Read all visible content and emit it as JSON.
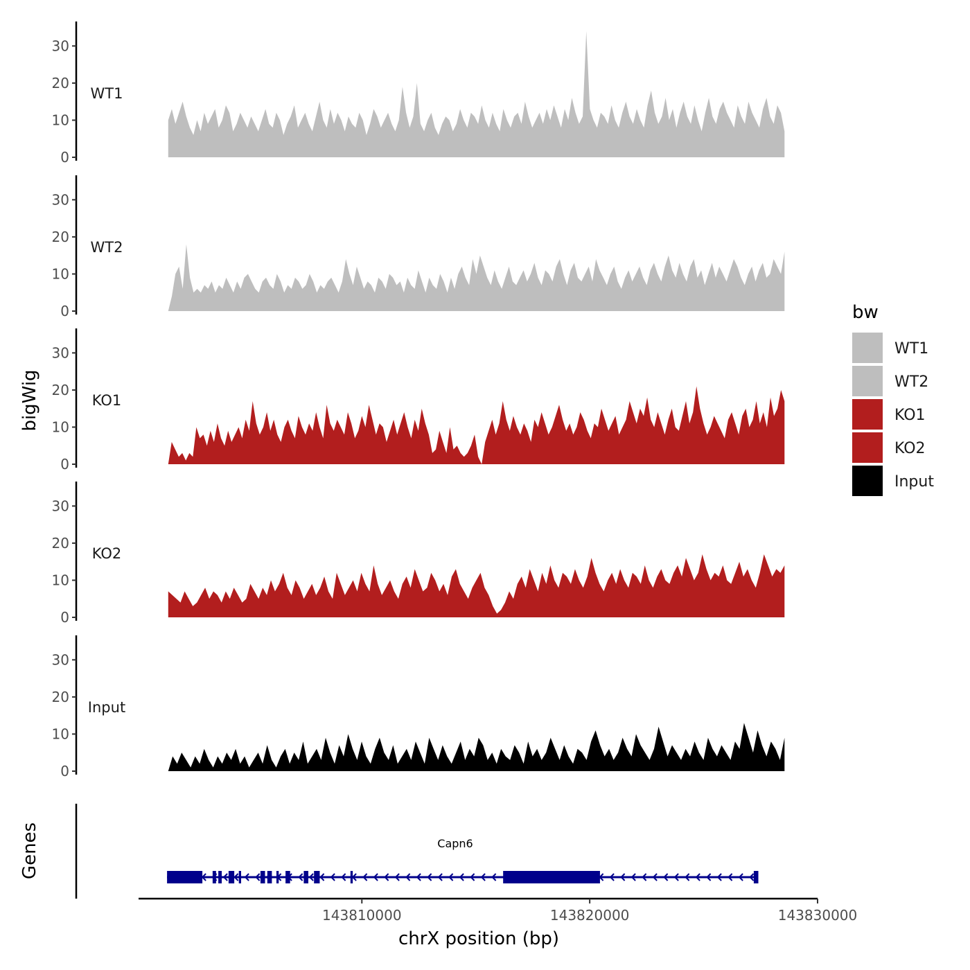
{
  "chart_data": {
    "type": "area",
    "y_axis_title": "bigWig",
    "x_axis_title": "chrX position (bp)",
    "x_range": [
      143800200,
      143830000
    ],
    "x_ticks": [
      143810000,
      143820000,
      143830000
    ],
    "x_tick_labels": [
      "143810000",
      "143820000",
      "143830000"
    ],
    "y_range": [
      0,
      36
    ],
    "y_ticks": [
      0,
      10,
      20,
      30
    ],
    "y_tick_labels": [
      "0",
      "10",
      "20",
      "30"
    ],
    "data_span": [
      143801500,
      143828550
    ],
    "tracks": [
      {
        "name": "WT1",
        "color": "#bebebe",
        "coverage": [
          10,
          13,
          9,
          12,
          15,
          11,
          8,
          6,
          10,
          7,
          12,
          9,
          11,
          13,
          8,
          10,
          14,
          12,
          7,
          9,
          12,
          10,
          8,
          11,
          9,
          7,
          10,
          13,
          9,
          8,
          12,
          10,
          6,
          9,
          11,
          14,
          8,
          10,
          12,
          9,
          7,
          11,
          15,
          10,
          8,
          13,
          9,
          12,
          10,
          7,
          11,
          9,
          8,
          12,
          10,
          6,
          9,
          13,
          11,
          8,
          10,
          12,
          9,
          7,
          10,
          19,
          12,
          8,
          11,
          20,
          9,
          7,
          10,
          12,
          8,
          6,
          9,
          11,
          10,
          7,
          9,
          13,
          10,
          8,
          12,
          11,
          9,
          14,
          10,
          8,
          12,
          9,
          7,
          13,
          10,
          8,
          11,
          12,
          9,
          15,
          11,
          8,
          10,
          12,
          9,
          13,
          10,
          14,
          11,
          8,
          13,
          10,
          16,
          12,
          9,
          11,
          34,
          13,
          10,
          8,
          12,
          11,
          9,
          14,
          10,
          8,
          12,
          15,
          11,
          9,
          13,
          10,
          8,
          14,
          18,
          12,
          9,
          11,
          16,
          10,
          13,
          8,
          12,
          15,
          11,
          9,
          14,
          10,
          7,
          12,
          16,
          11,
          9,
          13,
          15,
          12,
          10,
          8,
          14,
          11,
          9,
          15,
          12,
          10,
          8,
          13,
          16,
          11,
          9,
          14,
          12,
          7
        ]
      },
      {
        "name": "WT2",
        "color": "#bebebe",
        "coverage": [
          0,
          4,
          10,
          12,
          6,
          18,
          9,
          5,
          6,
          5,
          7,
          6,
          8,
          5,
          7,
          6,
          9,
          7,
          5,
          8,
          6,
          9,
          10,
          8,
          6,
          5,
          8,
          9,
          7,
          6,
          10,
          8,
          5,
          7,
          6,
          9,
          8,
          6,
          7,
          10,
          8,
          5,
          7,
          6,
          8,
          9,
          7,
          5,
          8,
          14,
          10,
          7,
          12,
          9,
          6,
          8,
          7,
          5,
          9,
          8,
          6,
          10,
          9,
          7,
          8,
          5,
          9,
          7,
          6,
          11,
          8,
          5,
          9,
          7,
          6,
          10,
          8,
          5,
          9,
          6,
          10,
          12,
          9,
          7,
          14,
          10,
          15,
          12,
          9,
          7,
          11,
          8,
          6,
          9,
          12,
          8,
          7,
          9,
          11,
          8,
          10,
          13,
          9,
          7,
          11,
          10,
          8,
          12,
          14,
          10,
          7,
          11,
          13,
          9,
          8,
          10,
          12,
          8,
          14,
          11,
          9,
          7,
          10,
          12,
          8,
          6,
          9,
          11,
          8,
          10,
          12,
          9,
          7,
          11,
          13,
          10,
          8,
          12,
          15,
          11,
          9,
          13,
          10,
          8,
          12,
          14,
          9,
          11,
          7,
          10,
          13,
          9,
          12,
          10,
          8,
          11,
          14,
          12,
          9,
          7,
          10,
          12,
          8,
          11,
          13,
          9,
          10,
          14,
          12,
          10,
          16
        ]
      },
      {
        "name": "KO1",
        "color": "#b21e1e",
        "coverage": [
          0,
          6,
          4,
          2,
          3,
          1,
          3,
          2,
          10,
          7,
          8,
          5,
          9,
          6,
          11,
          7,
          5,
          9,
          6,
          8,
          10,
          7,
          12,
          9,
          17,
          11,
          8,
          10,
          14,
          9,
          12,
          8,
          6,
          10,
          12,
          9,
          7,
          13,
          10,
          8,
          11,
          9,
          14,
          10,
          7,
          16,
          11,
          9,
          12,
          10,
          8,
          14,
          11,
          7,
          9,
          13,
          10,
          16,
          12,
          8,
          11,
          10,
          6,
          9,
          12,
          8,
          11,
          14,
          10,
          7,
          12,
          9,
          15,
          11,
          8,
          3,
          4,
          9,
          6,
          3,
          10,
          4,
          5,
          3,
          2,
          3,
          5,
          8,
          2,
          0,
          6,
          9,
          12,
          8,
          11,
          17,
          12,
          9,
          13,
          10,
          8,
          11,
          9,
          6,
          12,
          10,
          14,
          11,
          8,
          10,
          13,
          16,
          12,
          9,
          11,
          8,
          10,
          14,
          12,
          9,
          7,
          11,
          10,
          15,
          12,
          9,
          11,
          13,
          8,
          10,
          12,
          17,
          14,
          11,
          15,
          13,
          18,
          12,
          10,
          14,
          11,
          8,
          12,
          15,
          10,
          9,
          13,
          17,
          11,
          14,
          21,
          15,
          11,
          8,
          10,
          13,
          11,
          9,
          7,
          12,
          14,
          11,
          8,
          13,
          15,
          10,
          12,
          17,
          11,
          14,
          10,
          18,
          13,
          15,
          20,
          17
        ]
      },
      {
        "name": "KO2",
        "color": "#b21e1e",
        "coverage": [
          7,
          6,
          5,
          4,
          7,
          5,
          3,
          4,
          6,
          8,
          5,
          7,
          6,
          4,
          7,
          5,
          8,
          6,
          4,
          5,
          9,
          7,
          5,
          8,
          6,
          10,
          7,
          9,
          12,
          8,
          6,
          10,
          8,
          5,
          7,
          9,
          6,
          8,
          11,
          7,
          5,
          12,
          9,
          6,
          8,
          10,
          7,
          12,
          9,
          7,
          14,
          9,
          6,
          8,
          10,
          7,
          5,
          9,
          11,
          8,
          13,
          10,
          7,
          8,
          12,
          10,
          7,
          9,
          6,
          11,
          13,
          9,
          7,
          5,
          8,
          10,
          12,
          8,
          6,
          3,
          1,
          2,
          4,
          7,
          5,
          9,
          11,
          8,
          13,
          10,
          7,
          12,
          9,
          14,
          10,
          8,
          12,
          11,
          9,
          13,
          10,
          8,
          11,
          16,
          12,
          9,
          7,
          10,
          12,
          9,
          13,
          10,
          8,
          12,
          11,
          9,
          14,
          10,
          8,
          11,
          13,
          10,
          9,
          12,
          14,
          11,
          16,
          13,
          10,
          12,
          17,
          13,
          10,
          12,
          11,
          14,
          10,
          9,
          12,
          15,
          11,
          13,
          10,
          8,
          12,
          17,
          14,
          11,
          13,
          12,
          14
        ]
      },
      {
        "name": "Input",
        "color": "#000000",
        "coverage": [
          0,
          4,
          2,
          5,
          3,
          1,
          4,
          2,
          6,
          3,
          1,
          4,
          2,
          5,
          3,
          6,
          2,
          4,
          1,
          3,
          5,
          2,
          7,
          3,
          1,
          4,
          6,
          2,
          5,
          3,
          8,
          2,
          4,
          6,
          3,
          9,
          5,
          2,
          7,
          4,
          10,
          6,
          3,
          8,
          4,
          2,
          6,
          9,
          5,
          3,
          7,
          2,
          4,
          6,
          3,
          8,
          5,
          2,
          9,
          6,
          3,
          7,
          4,
          2,
          5,
          8,
          3,
          6,
          4,
          9,
          7,
          3,
          5,
          2,
          6,
          4,
          3,
          7,
          5,
          2,
          8,
          4,
          6,
          3,
          5,
          9,
          6,
          3,
          7,
          4,
          2,
          6,
          5,
          3,
          8,
          11,
          7,
          4,
          6,
          3,
          5,
          9,
          6,
          4,
          10,
          7,
          5,
          3,
          6,
          12,
          8,
          4,
          7,
          5,
          3,
          6,
          4,
          8,
          5,
          3,
          9,
          6,
          4,
          7,
          5,
          3,
          8,
          6,
          13,
          9,
          5,
          11,
          7,
          4,
          8,
          6,
          3,
          9
        ]
      }
    ],
    "legend": {
      "title": "bw",
      "entries": [
        {
          "label": "WT1",
          "color": "#bebebe"
        },
        {
          "label": "WT2",
          "color": "#bebebe"
        },
        {
          "label": "KO1",
          "color": "#b21e1e"
        },
        {
          "label": "KO2",
          "color": "#b21e1e"
        },
        {
          "label": "Input",
          "color": "#000000"
        }
      ]
    },
    "genes_track": {
      "title": "Genes",
      "color": "#00008b",
      "gene_name": "Capn6",
      "strand": "-",
      "span": [
        143801450,
        143827400
      ],
      "exons": [
        [
          143801450,
          143803000
        ],
        [
          143803450,
          143803600
        ],
        [
          143803700,
          143803850
        ],
        [
          143804150,
          143804400
        ],
        [
          143804600,
          143804700
        ],
        [
          143805550,
          143805750
        ],
        [
          143805850,
          143806050
        ],
        [
          143806250,
          143806350
        ],
        [
          143806650,
          143806850
        ],
        [
          143807450,
          143807650
        ],
        [
          143807900,
          143808150
        ],
        [
          143809500,
          143809600
        ],
        [
          143816200,
          143820450
        ],
        [
          143827200,
          143827400
        ]
      ]
    }
  }
}
